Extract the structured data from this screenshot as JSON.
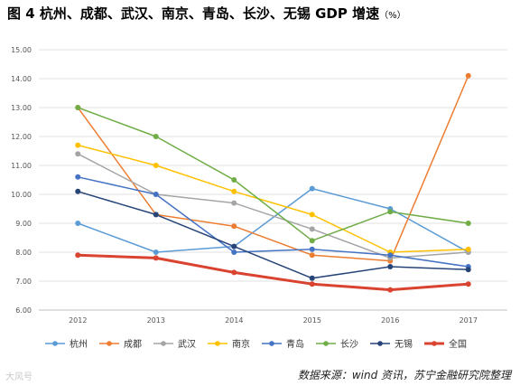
{
  "title": {
    "main": "图 4 杭州、成都、武汉、南京、青岛、长沙、无锡 GDP 增速",
    "unit": "（%）"
  },
  "source": "数据来源：wind 资讯，苏宁金融研究院整理",
  "watermark": "大风号",
  "chart_data": {
    "type": "line",
    "x": [
      "2012",
      "2013",
      "2014",
      "2015",
      "2016",
      "2017"
    ],
    "ylim": [
      6.0,
      15.0
    ],
    "yticks": [
      "6.00",
      "7.00",
      "8.00",
      "9.00",
      "10.00",
      "11.00",
      "12.00",
      "13.00",
      "14.00",
      "15.00"
    ],
    "grid": true,
    "legend_position": "bottom",
    "series": [
      {
        "name": "杭州",
        "color": "#5b9bd5",
        "width": 1.5,
        "values": [
          9.0,
          8.0,
          8.2,
          10.2,
          9.5,
          8.0
        ]
      },
      {
        "name": "成都",
        "color": "#ed7d31",
        "width": 1.5,
        "values": [
          13.0,
          9.3,
          8.9,
          7.9,
          7.7,
          14.1
        ]
      },
      {
        "name": "武汉",
        "color": "#a5a5a5",
        "width": 1.5,
        "values": [
          11.4,
          10.0,
          9.7,
          8.8,
          7.8,
          8.0
        ]
      },
      {
        "name": "南京",
        "color": "#ffc000",
        "width": 1.5,
        "values": [
          11.7,
          11.0,
          10.1,
          9.3,
          8.0,
          8.1
        ]
      },
      {
        "name": "青岛",
        "color": "#4472c4",
        "width": 1.5,
        "values": [
          10.6,
          10.0,
          8.0,
          8.1,
          7.9,
          7.5
        ]
      },
      {
        "name": "长沙",
        "color": "#70ad47",
        "width": 1.5,
        "values": [
          13.0,
          12.0,
          10.5,
          8.4,
          9.4,
          9.0
        ]
      },
      {
        "name": "无锡",
        "color": "#264478",
        "width": 1.5,
        "values": [
          10.1,
          9.3,
          8.2,
          7.1,
          7.5,
          7.4
        ]
      },
      {
        "name": "全国",
        "color": "#d9432f",
        "width": 3,
        "values": [
          7.9,
          7.8,
          7.3,
          6.9,
          6.7,
          6.9
        ]
      }
    ]
  }
}
